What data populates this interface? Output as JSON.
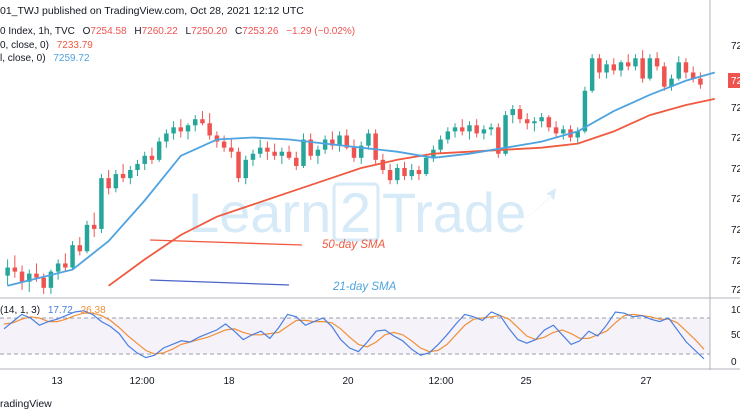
{
  "header": {
    "published": "01_TWJ published on TradingView.com, Oct 28, 2021 12:12 UTC"
  },
  "legend": {
    "symbol": "0 Index, 1h, TVC",
    "o_label": "O",
    "o_value": "7254.58",
    "h_label": "H",
    "h_value": "7260.22",
    "l_label": "L",
    "l_value": "7250.20",
    "c_label": "C",
    "c_value": "7253.26",
    "change": "−1.29 (−0.02%)",
    "ma50_label": "0, close, 0)",
    "ma50_value": "7233.79",
    "ma21_label": "l, close, 0)",
    "ma21_value": "7259.72",
    "stoch_label": "(14, 1, 3)",
    "stoch_k": "17.72",
    "stoch_d": "26.38"
  },
  "annotations": {
    "sma50": "50-day SMA",
    "sma21": "21-day SMA"
  },
  "watermark": {
    "part1": "Learn",
    "part2": "2",
    "part3": "Trade"
  },
  "footer": {
    "brand": "radingView"
  },
  "axis_labels": {
    "x": [
      "13",
      "12:00",
      "18",
      "20",
      "12:00",
      "25",
      "27"
    ],
    "price": [
      "72",
      "72",
      "72",
      "72",
      "72",
      "72",
      "72",
      "72",
      "72",
      "72"
    ],
    "stoch": [
      "10",
      "50",
      "0"
    ]
  },
  "colors": {
    "up": "#26a69a",
    "down": "#ef5350",
    "sma50": "#f05a40",
    "sma21": "#4fa3e0",
    "stoch_k": "#4a7fe0",
    "stoch_d": "#f0903a",
    "band": "#7e57c2"
  },
  "chart_data": [
    {
      "type": "candlestick",
      "ohlc": [
        [
          7195,
          7203,
          7190,
          7199
        ],
        [
          7199,
          7205,
          7194,
          7197
        ],
        [
          7197,
          7200,
          7188,
          7192
        ],
        [
          7192,
          7198,
          7187,
          7196
        ],
        [
          7196,
          7201,
          7192,
          7194
        ],
        [
          7194,
          7196,
          7186,
          7189
        ],
        [
          7189,
          7198,
          7186,
          7197
        ],
        [
          7197,
          7203,
          7193,
          7201
        ],
        [
          7201,
          7206,
          7197,
          7199
        ],
        [
          7199,
          7212,
          7198,
          7210
        ],
        [
          7210,
          7214,
          7205,
          7207
        ],
        [
          7207,
          7222,
          7206,
          7220
        ],
        [
          7220,
          7226,
          7214,
          7218
        ],
        [
          7218,
          7245,
          7216,
          7243
        ],
        [
          7243,
          7247,
          7235,
          7238
        ],
        [
          7238,
          7247,
          7236,
          7245
        ],
        [
          7245,
          7250,
          7241,
          7243
        ],
        [
          7243,
          7249,
          7240,
          7247
        ],
        [
          7247,
          7252,
          7244,
          7250
        ],
        [
          7250,
          7256,
          7247,
          7254
        ],
        [
          7254,
          7258,
          7250,
          7252
        ],
        [
          7252,
          7263,
          7251,
          7261
        ],
        [
          7261,
          7267,
          7258,
          7265
        ],
        [
          7265,
          7271,
          7262,
          7268
        ],
        [
          7268,
          7272,
          7263,
          7266
        ],
        [
          7266,
          7270,
          7262,
          7269
        ],
        [
          7269,
          7274,
          7266,
          7272
        ],
        [
          7272,
          7276,
          7269,
          7270
        ],
        [
          7270,
          7275,
          7262,
          7264
        ],
        [
          7264,
          7266,
          7258,
          7261
        ],
        [
          7261,
          7264,
          7256,
          7258
        ],
        [
          7258,
          7262,
          7253,
          7256
        ],
        [
          7256,
          7258,
          7241,
          7243
        ],
        [
          7243,
          7254,
          7240,
          7252
        ],
        [
          7252,
          7257,
          7249,
          7255
        ],
        [
          7255,
          7262,
          7253,
          7258
        ],
        [
          7258,
          7261,
          7252,
          7256
        ],
        [
          7256,
          7260,
          7252,
          7254
        ],
        [
          7254,
          7258,
          7250,
          7256
        ],
        [
          7256,
          7259,
          7252,
          7253
        ],
        [
          7253,
          7256,
          7247,
          7249
        ],
        [
          7249,
          7265,
          7248,
          7262
        ],
        [
          7262,
          7265,
          7252,
          7254
        ],
        [
          7254,
          7259,
          7250,
          7257
        ],
        [
          7257,
          7264,
          7255,
          7262
        ],
        [
          7262,
          7266,
          7257,
          7259
        ],
        [
          7259,
          7266,
          7256,
          7264
        ],
        [
          7264,
          7267,
          7257,
          7258
        ],
        [
          7258,
          7262,
          7251,
          7253
        ],
        [
          7253,
          7261,
          7250,
          7259
        ],
        [
          7259,
          7267,
          7257,
          7265
        ],
        [
          7265,
          7267,
          7250,
          7252
        ],
        [
          7252,
          7255,
          7245,
          7247
        ],
        [
          7247,
          7250,
          7240,
          7242
        ],
        [
          7242,
          7250,
          7240,
          7248
        ],
        [
          7248,
          7251,
          7242,
          7244
        ],
        [
          7244,
          7250,
          7242,
          7247
        ],
        [
          7247,
          7249,
          7242,
          7245
        ],
        [
          7245,
          7255,
          7244,
          7253
        ],
        [
          7253,
          7259,
          7251,
          7257
        ],
        [
          7257,
          7264,
          7255,
          7262
        ],
        [
          7262,
          7268,
          7260,
          7266
        ],
        [
          7266,
          7270,
          7263,
          7268
        ],
        [
          7268,
          7272,
          7264,
          7266
        ],
        [
          7266,
          7271,
          7262,
          7269
        ],
        [
          7269,
          7272,
          7263,
          7265
        ],
        [
          7265,
          7269,
          7262,
          7267
        ],
        [
          7267,
          7270,
          7264,
          7268
        ],
        [
          7268,
          7270,
          7253,
          7255
        ],
        [
          7255,
          7276,
          7254,
          7274
        ],
        [
          7274,
          7279,
          7270,
          7277
        ],
        [
          7277,
          7279,
          7270,
          7272
        ],
        [
          7272,
          7275,
          7267,
          7270
        ],
        [
          7270,
          7273,
          7266,
          7271
        ],
        [
          7271,
          7275,
          7268,
          7273
        ],
        [
          7273,
          7274,
          7266,
          7268
        ],
        [
          7268,
          7271,
          7263,
          7265
        ],
        [
          7265,
          7269,
          7262,
          7267
        ],
        [
          7267,
          7269,
          7261,
          7263
        ],
        [
          7263,
          7268,
          7260,
          7266
        ],
        [
          7266,
          7288,
          7265,
          7286
        ],
        [
          7286,
          7304,
          7285,
          7302
        ],
        [
          7302,
          7304,
          7292,
          7295
        ],
        [
          7295,
          7301,
          7292,
          7299
        ],
        [
          7299,
          7302,
          7294,
          7296
        ],
        [
          7296,
          7301,
          7293,
          7300
        ],
        [
          7300,
          7304,
          7296,
          7298
        ],
        [
          7298,
          7304,
          7296,
          7302
        ],
        [
          7302,
          7306,
          7290,
          7292
        ],
        [
          7292,
          7304,
          7291,
          7302
        ],
        [
          7302,
          7305,
          7296,
          7298
        ],
        [
          7298,
          7300,
          7286,
          7288
        ],
        [
          7288,
          7294,
          7286,
          7292
        ],
        [
          7292,
          7303,
          7291,
          7300
        ],
        [
          7300,
          7302,
          7292,
          7295
        ],
        [
          7295,
          7298,
          7290,
          7292
        ],
        [
          7292,
          7295,
          7287,
          7289
        ]
      ],
      "sma21": [
        [
          0,
          7190
        ],
        [
          9,
          7198
        ],
        [
          14,
          7212
        ],
        [
          19,
          7232
        ],
        [
          24,
          7254
        ],
        [
          29,
          7262
        ],
        [
          34,
          7263
        ],
        [
          39,
          7262
        ],
        [
          44,
          7260
        ],
        [
          49,
          7258
        ],
        [
          54,
          7256
        ],
        [
          59,
          7253
        ],
        [
          64,
          7255
        ],
        [
          69,
          7258
        ],
        [
          74,
          7261
        ],
        [
          79,
          7266
        ],
        [
          84,
          7276
        ],
        [
          89,
          7284
        ],
        [
          94,
          7291
        ],
        [
          98,
          7295
        ]
      ],
      "sma50": [
        [
          14,
          7190
        ],
        [
          19,
          7203
        ],
        [
          24,
          7215
        ],
        [
          29,
          7224
        ],
        [
          34,
          7230
        ],
        [
          39,
          7236
        ],
        [
          44,
          7242
        ],
        [
          49,
          7248
        ],
        [
          54,
          7252
        ],
        [
          59,
          7255
        ],
        [
          64,
          7256
        ],
        [
          69,
          7257
        ],
        [
          74,
          7258
        ],
        [
          79,
          7260
        ],
        [
          84,
          7266
        ],
        [
          89,
          7274
        ],
        [
          94,
          7279
        ],
        [
          98,
          7282
        ]
      ]
    },
    {
      "type": "line",
      "name": "stochastic",
      "ylim": [
        0,
        100
      ],
      "band": [
        20,
        80
      ],
      "k": [
        62,
        74,
        86,
        80,
        68,
        74,
        78,
        84,
        90,
        92,
        86,
        74,
        66,
        54,
        34,
        22,
        14,
        18,
        30,
        36,
        42,
        40,
        48,
        54,
        60,
        70,
        58,
        44,
        52,
        58,
        46,
        64,
        86,
        82,
        68,
        74,
        80,
        66,
        44,
        30,
        24,
        40,
        58,
        60,
        50,
        42,
        28,
        18,
        22,
        36,
        52,
        70,
        86,
        82,
        76,
        90,
        84,
        62,
        44,
        38,
        44,
        60,
        68,
        52,
        36,
        42,
        58,
        50,
        68,
        90,
        88,
        82,
        84,
        78,
        74,
        80,
        60,
        40,
        26,
        12
      ],
      "d": [
        70,
        72,
        78,
        82,
        80,
        74,
        74,
        78,
        84,
        88,
        88,
        84,
        76,
        64,
        50,
        38,
        26,
        20,
        22,
        28,
        36,
        40,
        44,
        48,
        54,
        60,
        62,
        56,
        52,
        52,
        54,
        56,
        66,
        76,
        76,
        74,
        74,
        72,
        62,
        48,
        36,
        32,
        40,
        52,
        56,
        52,
        42,
        30,
        24,
        26,
        36,
        52,
        68,
        78,
        80,
        82,
        84,
        78,
        64,
        50,
        44,
        48,
        56,
        60,
        54,
        46,
        46,
        52,
        58,
        72,
        84,
        86,
        84,
        82,
        78,
        78,
        72,
        58,
        44,
        28
      ]
    }
  ]
}
